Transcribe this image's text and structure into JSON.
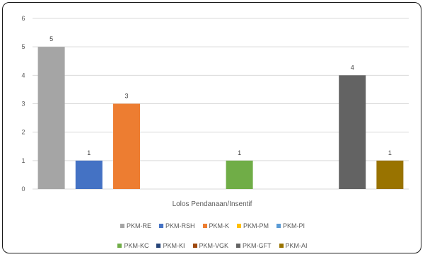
{
  "chart_data": {
    "type": "bar",
    "xlabel": "Lolos Pendanaan/Insentif",
    "ylim": [
      0,
      6
    ],
    "yticks": [
      0,
      1,
      2,
      3,
      4,
      5,
      6
    ],
    "grid": true,
    "legend_position": "bottom",
    "series": [
      {
        "name": "PKM-RE",
        "value": 5,
        "color": "#a5a5a5"
      },
      {
        "name": "PKM-RSH",
        "value": 1,
        "color": "#4472c4"
      },
      {
        "name": "PKM-K",
        "value": 3,
        "color": "#ed7d31"
      },
      {
        "name": "PKM-PM",
        "value": 0,
        "color": "#ffc000"
      },
      {
        "name": "PKM-PI",
        "value": 0,
        "color": "#5b9bd5"
      },
      {
        "name": "PKM-KC",
        "value": 1,
        "color": "#70ad47"
      },
      {
        "name": "PKM-KI",
        "value": 0,
        "color": "#264478"
      },
      {
        "name": "PKM-VGK",
        "value": 0,
        "color": "#9e480e"
      },
      {
        "name": "PKM-GFT",
        "value": 4,
        "color": "#636363"
      },
      {
        "name": "PKM-AI",
        "value": 1,
        "color": "#997300"
      }
    ]
  }
}
